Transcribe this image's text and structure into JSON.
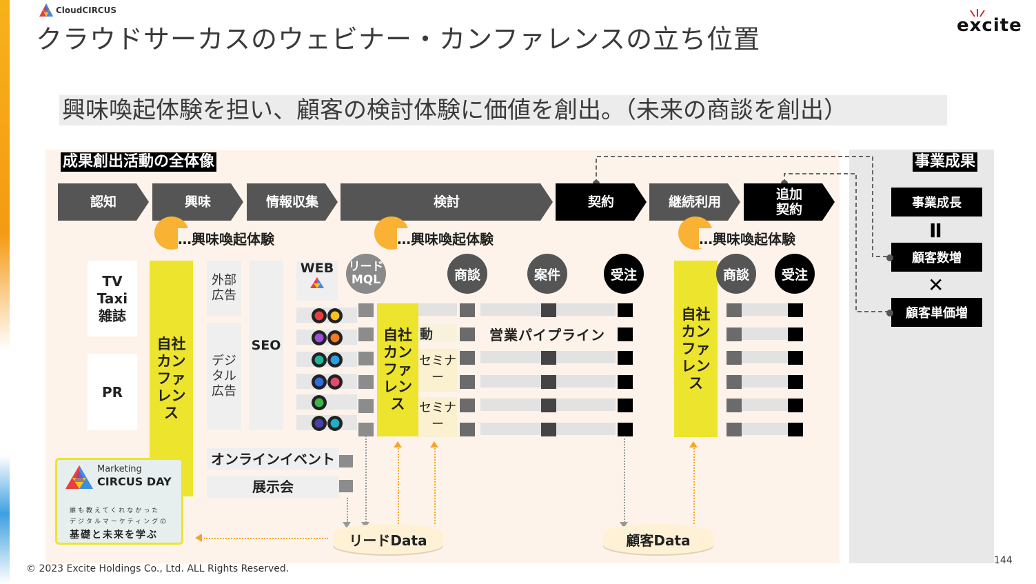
{
  "header": {
    "brand_logo_text": "CloudCIRCUS",
    "title": "クラウドサーカスのウェビナー・カンファレンスの立ち位置",
    "partner_logo_text": "excite"
  },
  "subtitle": "興味喚起体験を担い、顧客の検討体験に価値を創出。（未来の商談を創出）",
  "diagram": {
    "section_label": "成果創出活動の全体像",
    "stages": [
      "認知",
      "興味",
      "情報収集",
      "検討",
      "契約",
      "継続利用",
      "追加\n契約"
    ],
    "stage_colors": {
      "funnel": "#555555",
      "sales": "#000000"
    },
    "interest_label": "…興味喚起体験",
    "awareness_boxes": [
      "TV\nTaxi\n雑誌",
      "PR"
    ],
    "own_conference": "自社\nカン\nファ\nレン\nス",
    "ad_boxes": [
      "外部\n広告",
      "デジ\nタル\n広告"
    ],
    "seo": "SEO",
    "web": "WEB",
    "web_logo_text": "CloudCIRCUS",
    "status_circles": {
      "lead": "リード\nMQL",
      "deal": "商談",
      "case": "案件",
      "order": "受注"
    },
    "activity_fragment": "動",
    "pipeline": "営業パイプライン",
    "seminars": [
      "セミナ\nー",
      "セミナ\nー"
    ],
    "events": [
      "オンラインイベント",
      "展示会"
    ],
    "event_banner": {
      "line1": "Marketing",
      "line2": "CIRCUS DAY",
      "tag1": "誰も教えてくれなかった",
      "tag2": "デジタルマーケティングの",
      "tag3": "基礎と未来を学ぶ"
    },
    "databases": [
      "リードData",
      "顧客Data"
    ]
  },
  "business": {
    "label": "事業成果",
    "growth": "事業成長",
    "equals": "II",
    "customers": "顧客数増",
    "times": "✕",
    "unit_price": "顧客単価増"
  },
  "footer": {
    "copyright": "© 2023 Excite Holdings Co., Ltd. ALL Rights Reserved.",
    "page_number": "144"
  }
}
